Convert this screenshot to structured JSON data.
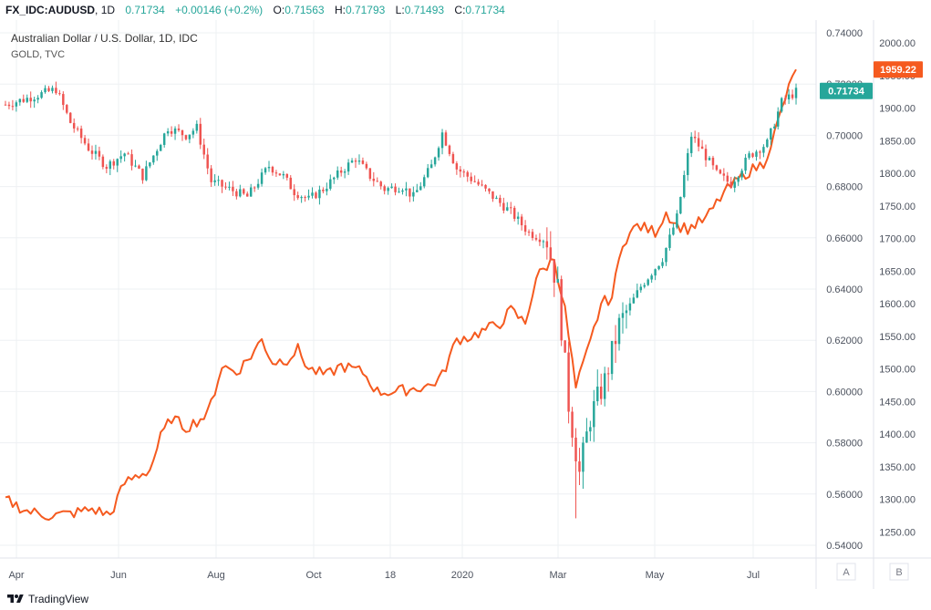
{
  "header": {
    "symbol": "FX_IDC:AUDUSD",
    "interval": "1D",
    "price": "0.71734",
    "change": "+0.00146 (+0.2%)",
    "o_label": "O:",
    "o_value": "0.71563",
    "h_label": "H:",
    "h_value": "0.71793",
    "l_label": "L:",
    "l_value": "0.71493",
    "c_label": "C:",
    "c_value": "0.71734"
  },
  "legend": {
    "main": "Australian Dollar / U.S. Dollar, 1D, IDC",
    "overlay": "GOLD, TVC"
  },
  "badges": {
    "audusd": "0.71734",
    "gold": "1959.22"
  },
  "scale_buttons": {
    "a": "A",
    "b": "B"
  },
  "brand": "TradingView",
  "colors": {
    "up": "#26a69a",
    "down": "#ef5350",
    "gold_line": "#f55a1f",
    "grid": "#eef0f3",
    "axis_text": "#4c525e"
  },
  "chart_data": {
    "type": "line",
    "x_ticks": [
      "Apr",
      "Jun",
      "Aug",
      "Oct",
      "18",
      "2020",
      "Mar",
      "May",
      "Jul"
    ],
    "right_axis_audusd": {
      "ticks": [
        "0.74000",
        "0.72000",
        "0.70000",
        "0.68000",
        "0.66000",
        "0.64000",
        "0.62000",
        "0.60000",
        "0.58000",
        "0.56000",
        "0.54000"
      ],
      "ylim": [
        0.535,
        0.745
      ]
    },
    "right_axis_gold": {
      "ticks": [
        "2000.00",
        "1950.00",
        "1900.00",
        "1850.00",
        "1800.00",
        "1750.00",
        "1700.00",
        "1650.00",
        "1600.00",
        "1550.00",
        "1500.00",
        "1450.00",
        "1400.00",
        "1350.00",
        "1300.00",
        "1250.00"
      ],
      "ylim": [
        1210,
        2035
      ]
    },
    "series": [
      {
        "name": "Australian Dollar / U.S. Dollar, 1D, IDC",
        "kind": "candlestick",
        "keypoints": [
          [
            0,
            0.712
          ],
          [
            5,
            0.714
          ],
          [
            14,
            0.718
          ],
          [
            18,
            0.705
          ],
          [
            23,
            0.695
          ],
          [
            28,
            0.688
          ],
          [
            33,
            0.693
          ],
          [
            38,
            0.684
          ],
          [
            45,
            0.703
          ],
          [
            50,
            0.7
          ],
          [
            53,
            0.703
          ],
          [
            57,
            0.682
          ],
          [
            62,
            0.679
          ],
          [
            67,
            0.676
          ],
          [
            73,
            0.688
          ],
          [
            77,
            0.684
          ],
          [
            80,
            0.678
          ],
          [
            84,
            0.675
          ],
          [
            88,
            0.679
          ],
          [
            93,
            0.686
          ],
          [
            97,
            0.691
          ],
          [
            101,
            0.684
          ],
          [
            105,
            0.679
          ],
          [
            110,
            0.68
          ],
          [
            113,
            0.676
          ],
          [
            118,
            0.688
          ],
          [
            121,
            0.701
          ],
          [
            125,
            0.687
          ],
          [
            130,
            0.682
          ],
          [
            135,
            0.676
          ],
          [
            140,
            0.67
          ],
          [
            145,
            0.662
          ],
          [
            150,
            0.659
          ],
          [
            153,
            0.64
          ],
          [
            156,
            0.595
          ],
          [
            159,
            0.568
          ],
          [
            162,
            0.59
          ],
          [
            166,
            0.604
          ],
          [
            170,
            0.626
          ],
          [
            176,
            0.641
          ],
          [
            182,
            0.652
          ],
          [
            186,
            0.668
          ],
          [
            190,
            0.7
          ],
          [
            193,
            0.694
          ],
          [
            197,
            0.685
          ],
          [
            201,
            0.681
          ],
          [
            206,
            0.692
          ],
          [
            211,
            0.697
          ],
          [
            215,
            0.713
          ],
          [
            219,
            0.717
          ]
        ]
      },
      {
        "name": "GOLD, TVC",
        "kind": "line",
        "keypoints": [
          [
            0,
            1300
          ],
          [
            6,
            1282
          ],
          [
            12,
            1275
          ],
          [
            18,
            1278
          ],
          [
            24,
            1285
          ],
          [
            29,
            1276
          ],
          [
            33,
            1325
          ],
          [
            36,
            1335
          ],
          [
            40,
            1345
          ],
          [
            43,
            1395
          ],
          [
            46,
            1425
          ],
          [
            50,
            1410
          ],
          [
            56,
            1430
          ],
          [
            60,
            1505
          ],
          [
            64,
            1495
          ],
          [
            68,
            1520
          ],
          [
            71,
            1545
          ],
          [
            74,
            1510
          ],
          [
            78,
            1515
          ],
          [
            81,
            1530
          ],
          [
            84,
            1500
          ],
          [
            89,
            1490
          ],
          [
            93,
            1505
          ],
          [
            99,
            1495
          ],
          [
            103,
            1465
          ],
          [
            108,
            1465
          ],
          [
            113,
            1470
          ],
          [
            118,
            1475
          ],
          [
            121,
            1490
          ],
          [
            125,
            1545
          ],
          [
            129,
            1550
          ],
          [
            133,
            1560
          ],
          [
            137,
            1570
          ],
          [
            140,
            1590
          ],
          [
            144,
            1570
          ],
          [
            147,
            1640
          ],
          [
            152,
            1670
          ],
          [
            155,
            1590
          ],
          [
            158,
            1470
          ],
          [
            162,
            1540
          ],
          [
            165,
            1600
          ],
          [
            168,
            1610
          ],
          [
            171,
            1695
          ],
          [
            175,
            1720
          ],
          [
            180,
            1710
          ],
          [
            183,
            1740
          ],
          [
            186,
            1720
          ],
          [
            189,
            1715
          ],
          [
            194,
            1730
          ],
          [
            199,
            1770
          ],
          [
            205,
            1800
          ],
          [
            210,
            1815
          ],
          [
            213,
            1860
          ],
          [
            216,
            1915
          ],
          [
            219,
            1960
          ]
        ]
      }
    ],
    "grid": true,
    "legend_position": "top-left"
  }
}
